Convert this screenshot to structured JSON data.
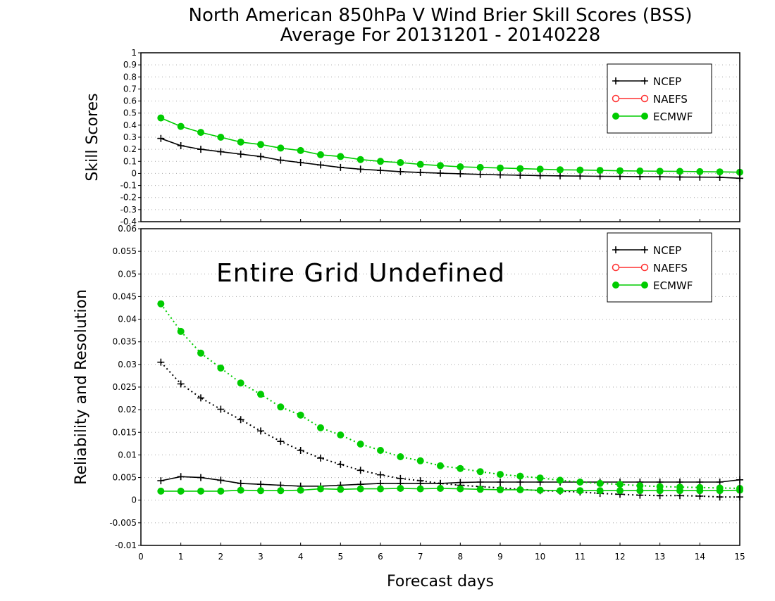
{
  "title_line1": "North American 850hPa V Wind Brier Skill Scores (BSS)",
  "title_line2": "Average For 20131201 - 20140228",
  "colors": {
    "NCEP": "#000000",
    "NAEFS": "#ff3030",
    "ECMWF": "#00cc00",
    "grid": "#aaaaaa"
  },
  "chart_data": [
    {
      "type": "line",
      "ylabel": "Skill Scores",
      "xlim": [
        0,
        15
      ],
      "ylim": [
        -0.4,
        1
      ],
      "yticks": [
        "-0.4",
        "-0.3",
        "-0.2",
        "-0.1",
        "0",
        "0.1",
        "0.2",
        "0.3",
        "0.4",
        "0.5",
        "0.6",
        "0.7",
        "0.8",
        "0.9",
        "1"
      ],
      "ytick_values": [
        -0.4,
        -0.3,
        -0.2,
        -0.1,
        0,
        0.1,
        0.2,
        0.3,
        0.4,
        0.5,
        0.6,
        0.7,
        0.8,
        0.9,
        1
      ],
      "grid": true,
      "legend_position": "top-right",
      "legend": [
        "NCEP",
        "NAEFS",
        "ECMWF"
      ],
      "x": [
        0.5,
        1,
        1.5,
        2,
        2.5,
        3,
        3.5,
        4,
        4.5,
        5,
        5.5,
        6,
        6.5,
        7,
        7.5,
        8,
        8.5,
        9,
        9.5,
        10,
        10.5,
        11,
        11.5,
        12,
        12.5,
        13,
        13.5,
        14,
        14.5,
        15
      ],
      "series": [
        {
          "name": "NCEP",
          "style": "solid",
          "marker": "plus",
          "values": [
            0.29,
            0.23,
            0.2,
            0.18,
            0.16,
            0.14,
            0.11,
            0.09,
            0.07,
            0.05,
            0.035,
            0.025,
            0.015,
            0.008,
            0.002,
            -0.003,
            -0.008,
            -0.012,
            -0.015,
            -0.018,
            -0.02,
            -0.022,
            -0.024,
            -0.025,
            -0.027,
            -0.028,
            -0.03,
            -0.031,
            -0.032,
            -0.04
          ]
        },
        {
          "name": "ECMWF",
          "style": "solid",
          "marker": "dot",
          "values": [
            0.46,
            0.39,
            0.34,
            0.3,
            0.26,
            0.24,
            0.21,
            0.19,
            0.155,
            0.14,
            0.115,
            0.1,
            0.09,
            0.075,
            0.065,
            0.055,
            0.05,
            0.045,
            0.04,
            0.035,
            0.03,
            0.028,
            0.025,
            0.022,
            0.02,
            0.018,
            0.017,
            0.015,
            0.013,
            0.01
          ]
        }
      ]
    },
    {
      "type": "line",
      "ylabel": "Reliability and Resolution",
      "xlabel": "Forecast days",
      "xlim": [
        0,
        15
      ],
      "ylim": [
        -0.01,
        0.06
      ],
      "xticks": [
        "0",
        "1",
        "2",
        "3",
        "4",
        "5",
        "6",
        "7",
        "8",
        "9",
        "10",
        "11",
        "12",
        "13",
        "14",
        "15"
      ],
      "yticks": [
        "-0.01",
        "-0.005",
        "0",
        "0.005",
        "0.01",
        "0.015",
        "0.02",
        "0.025",
        "0.03",
        "0.035",
        "0.04",
        "0.045",
        "0.05",
        "0.055",
        "0.06"
      ],
      "ytick_values": [
        -0.01,
        -0.005,
        0,
        0.005,
        0.01,
        0.015,
        0.02,
        0.025,
        0.03,
        0.035,
        0.04,
        0.045,
        0.05,
        0.055,
        0.06
      ],
      "grid": true,
      "legend_position": "top-right",
      "legend": [
        "NCEP",
        "NAEFS",
        "ECMWF"
      ],
      "annotation": "Entire Grid Undefined",
      "x": [
        0.5,
        1,
        1.5,
        2,
        2.5,
        3,
        3.5,
        4,
        4.5,
        5,
        5.5,
        6,
        6.5,
        7,
        7.5,
        8,
        8.5,
        9,
        9.5,
        10,
        10.5,
        11,
        11.5,
        12,
        12.5,
        13,
        13.5,
        14,
        14.5,
        15
      ],
      "series": [
        {
          "name": "NCEP",
          "component": "Reliability",
          "style": "solid",
          "marker": "plus",
          "values": [
            0.0043,
            0.0052,
            0.005,
            0.0044,
            0.0037,
            0.0035,
            0.0033,
            0.0031,
            0.0031,
            0.0033,
            0.0035,
            0.0037,
            0.0037,
            0.0037,
            0.0037,
            0.0039,
            0.004,
            0.004,
            0.004,
            0.004,
            0.004,
            0.004,
            0.004,
            0.004,
            0.004,
            0.004,
            0.004,
            0.004,
            0.004,
            0.0045
          ]
        },
        {
          "name": "NCEP",
          "component": "Resolution",
          "style": "dotted",
          "marker": "plus",
          "values": [
            0.0305,
            0.0257,
            0.0226,
            0.0201,
            0.0178,
            0.0153,
            0.013,
            0.011,
            0.0093,
            0.0079,
            0.0066,
            0.0056,
            0.0048,
            0.0043,
            0.0037,
            0.0033,
            0.003,
            0.0027,
            0.0024,
            0.0021,
            0.002,
            0.0018,
            0.0015,
            0.0013,
            0.0011,
            0.001,
            0.001,
            0.0009,
            0.0007,
            0.0007
          ]
        },
        {
          "name": "ECMWF",
          "component": "Reliability",
          "style": "solid",
          "marker": "dot",
          "values": [
            0.002,
            0.002,
            0.002,
            0.002,
            0.0022,
            0.0021,
            0.0021,
            0.0022,
            0.0025,
            0.0024,
            0.0025,
            0.0025,
            0.0026,
            0.0025,
            0.0026,
            0.0025,
            0.0024,
            0.0023,
            0.0023,
            0.0022,
            0.0021,
            0.0021,
            0.0021,
            0.0021,
            0.0021,
            0.0021,
            0.0021,
            0.0021,
            0.0021,
            0.0022
          ]
        },
        {
          "name": "ECMWF",
          "component": "Resolution",
          "style": "dotted",
          "marker": "dot",
          "values": [
            0.0434,
            0.0373,
            0.0325,
            0.0292,
            0.0259,
            0.0234,
            0.0206,
            0.0188,
            0.016,
            0.0144,
            0.0124,
            0.011,
            0.0096,
            0.0087,
            0.0076,
            0.007,
            0.0063,
            0.0057,
            0.0053,
            0.0049,
            0.0044,
            0.004,
            0.0037,
            0.0035,
            0.0032,
            0.003,
            0.0029,
            0.0028,
            0.0027,
            0.0026
          ]
        }
      ]
    }
  ]
}
